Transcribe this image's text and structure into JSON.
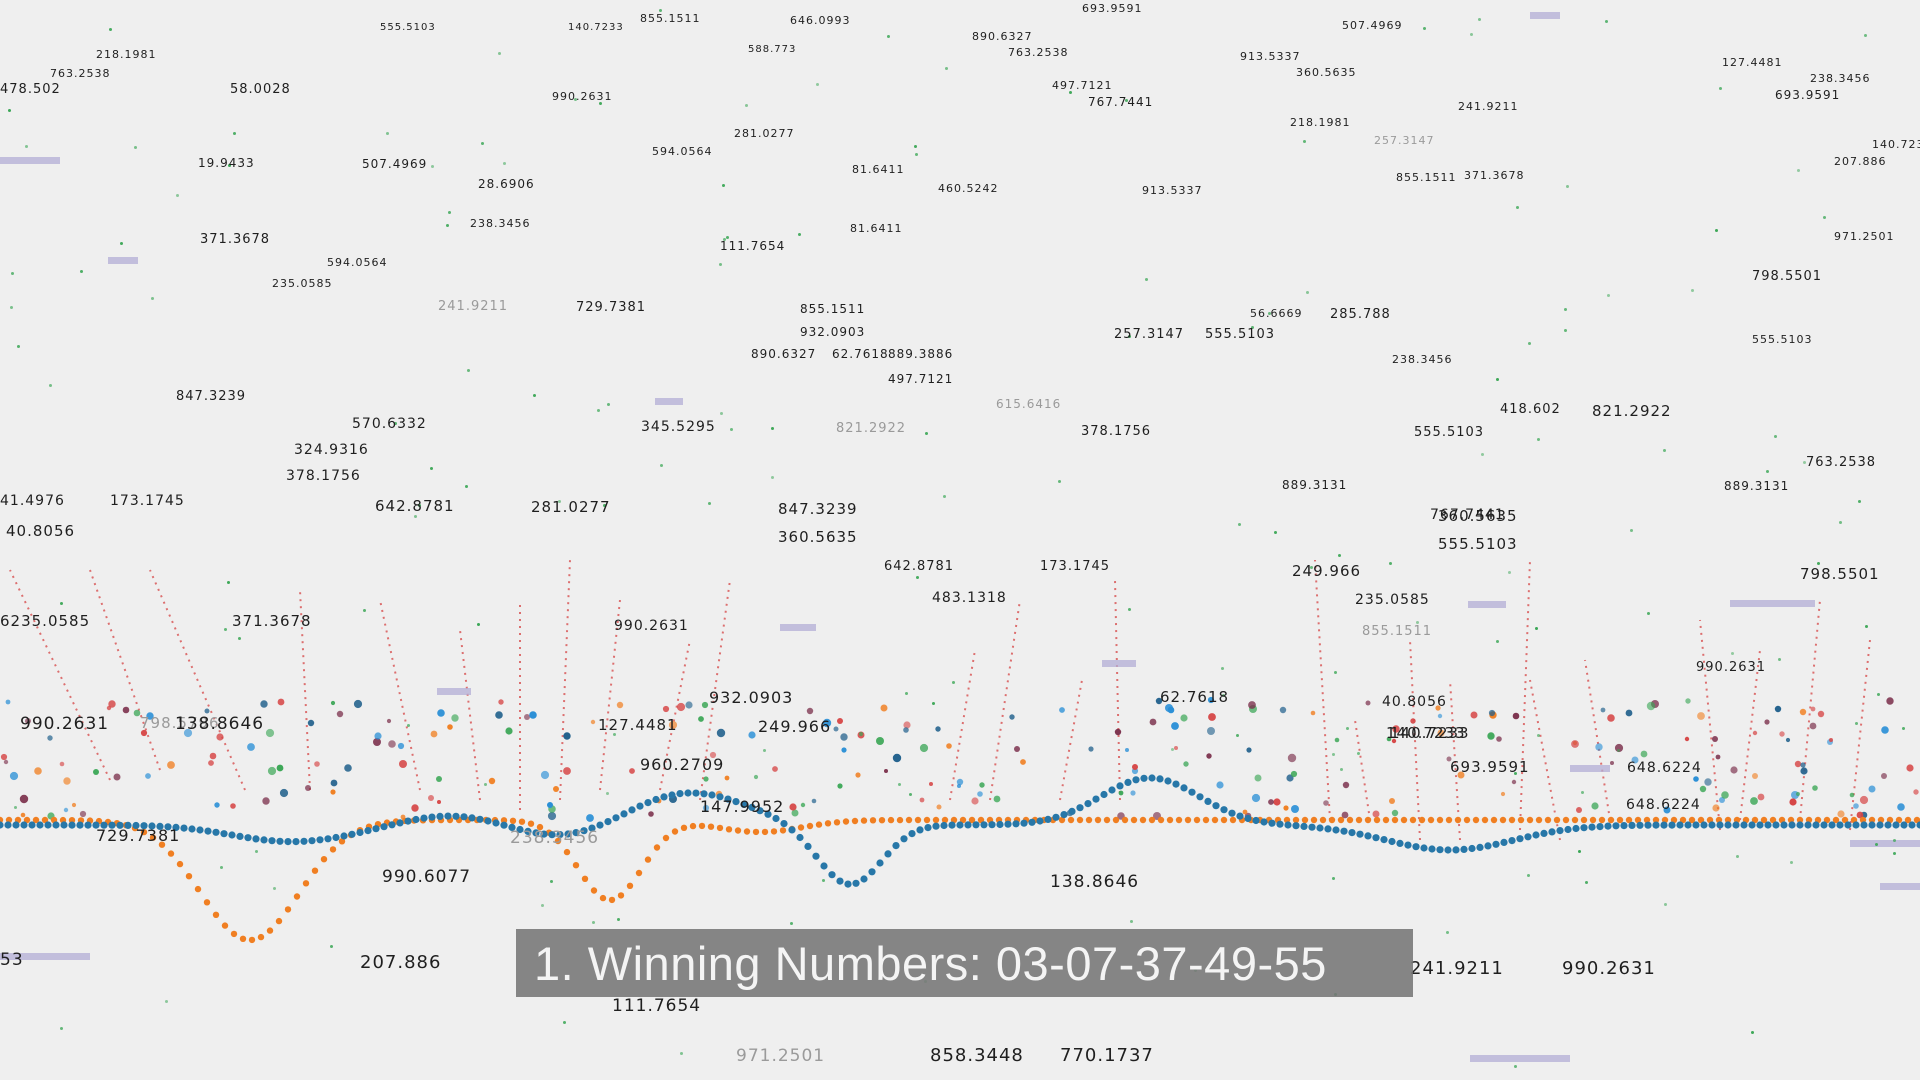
{
  "caption": {
    "text": "1. Winning Numbers: 03-07-37-49-55"
  },
  "colors": {
    "background": "#efefef",
    "blue_series": "#2777a8",
    "orange_series": "#f07f22",
    "stem_red": "#d64545",
    "accent_lavender": "#b3aed6",
    "star_green": "#3aa655"
  },
  "floating_numbers": [
    {
      "text": "218.1981"
    },
    {
      "text": "763.2538"
    },
    {
      "text": "478.502"
    },
    {
      "text": "58.0028"
    },
    {
      "text": "555.5103"
    },
    {
      "text": "140.7233"
    },
    {
      "text": "855.1511"
    },
    {
      "text": "646.0993"
    },
    {
      "text": "890.6327"
    },
    {
      "text": "763.2538"
    },
    {
      "text": "693.9591"
    },
    {
      "text": "507.4969"
    },
    {
      "text": "913.5337"
    },
    {
      "text": "360.5635"
    },
    {
      "text": "588.773"
    },
    {
      "text": "990.2631"
    },
    {
      "text": "497.7121"
    },
    {
      "text": "767.7441"
    },
    {
      "text": "218.1981"
    },
    {
      "text": "241.9211"
    },
    {
      "text": "693.9591"
    },
    {
      "text": "127.4481"
    },
    {
      "text": "238.3456"
    },
    {
      "text": "19.9433"
    },
    {
      "text": "507.4969"
    },
    {
      "text": "281.0277"
    },
    {
      "text": "594.0564"
    },
    {
      "text": "81.6411"
    },
    {
      "text": "460.5242"
    },
    {
      "text": "913.5337"
    },
    {
      "text": "257.3147"
    },
    {
      "text": "371.3678"
    },
    {
      "text": "140.7233"
    },
    {
      "text": "207.886"
    },
    {
      "text": "28.6906"
    },
    {
      "text": "238.3456"
    },
    {
      "text": "371.3678"
    },
    {
      "text": "594.0564"
    },
    {
      "text": "111.7654"
    },
    {
      "text": "81.6411"
    },
    {
      "text": "855.1511"
    },
    {
      "text": "971.2501"
    },
    {
      "text": "235.0585"
    },
    {
      "text": "241.9211"
    },
    {
      "text": "729.7381"
    },
    {
      "text": "855.1511"
    },
    {
      "text": "932.0903"
    },
    {
      "text": "890.6327"
    },
    {
      "text": "62.7618"
    },
    {
      "text": "889.3886"
    },
    {
      "text": "497.7121"
    },
    {
      "text": "257.3147"
    },
    {
      "text": "555.5103"
    },
    {
      "text": "56.6669"
    },
    {
      "text": "285.788"
    },
    {
      "text": "238.3456"
    },
    {
      "text": "798.5501"
    },
    {
      "text": "555.5103"
    },
    {
      "text": "847.3239"
    },
    {
      "text": "570.6332"
    },
    {
      "text": "345.5295"
    },
    {
      "text": "821.2922"
    },
    {
      "text": "615.6416"
    },
    {
      "text": "378.1756"
    },
    {
      "text": "418.602"
    },
    {
      "text": "821.2922"
    },
    {
      "text": "324.9316"
    },
    {
      "text": "378.1756"
    },
    {
      "text": "555.5103"
    },
    {
      "text": "763.2538"
    },
    {
      "text": "41.4976"
    },
    {
      "text": "173.1745"
    },
    {
      "text": "642.8781"
    },
    {
      "text": "281.0277"
    },
    {
      "text": "847.3239"
    },
    {
      "text": "889.3131"
    },
    {
      "text": "889.3131"
    },
    {
      "text": "40.8056"
    },
    {
      "text": "360.5635"
    },
    {
      "text": "360.5635"
    },
    {
      "text": "767.7441"
    },
    {
      "text": "555.5103"
    },
    {
      "text": "642.8781"
    },
    {
      "text": "173.1745"
    },
    {
      "text": "249.966"
    },
    {
      "text": "798.5501"
    },
    {
      "text": "6235.0585"
    },
    {
      "text": "371.3678"
    },
    {
      "text": "483.1318"
    },
    {
      "text": "235.0585"
    },
    {
      "text": "990.2631"
    },
    {
      "text": "855.1511"
    },
    {
      "text": "990.2631"
    },
    {
      "text": "140.7233"
    },
    {
      "text": "932.0903"
    },
    {
      "text": "62.7618"
    },
    {
      "text": "40.8056"
    },
    {
      "text": "990.2631"
    },
    {
      "text": "798.5796"
    },
    {
      "text": "138.8646"
    },
    {
      "text": "127.4481"
    },
    {
      "text": "249.966"
    },
    {
      "text": "140.7233"
    },
    {
      "text": "960.2709"
    },
    {
      "text": "693.9591"
    },
    {
      "text": "648.6224"
    },
    {
      "text": "147.9952"
    },
    {
      "text": "648.6224"
    },
    {
      "text": "729.7381"
    },
    {
      "text": "238.3456"
    },
    {
      "text": "990.6077"
    },
    {
      "text": "138.8646"
    },
    {
      "text": "207.886"
    },
    {
      "text": "241.9211"
    },
    {
      "text": "990.2631"
    },
    {
      "text": "111.7654"
    },
    {
      "text": "971.2501"
    },
    {
      "text": "858.3448"
    },
    {
      "text": "770.1737"
    },
    {
      "text": "53"
    }
  ]
}
